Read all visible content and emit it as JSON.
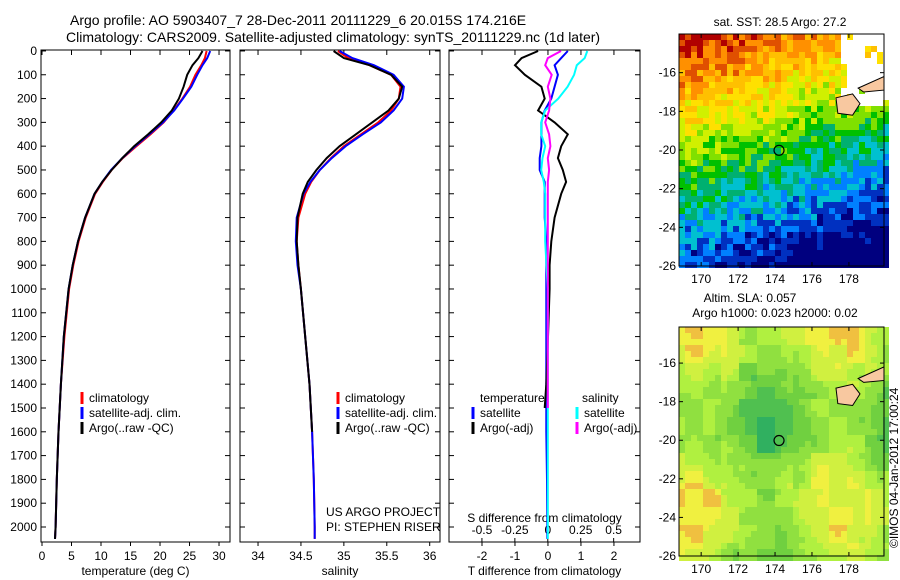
{
  "title_line1": "Argo profile: AO 5903407_7 28-Dec-2011 20111229_6 20.015S 174.216E",
  "title_line2": "Climatology: CARS2009. Satellite-adjusted climatology: synTS_20111229.nc (1d later)",
  "credit": "US ARGO PROJECT",
  "pi": "PI: STEPHEN RISER",
  "footer_stamp": "©IMOS 04-Jan-2012 17:00:24",
  "colors": {
    "climatology": "#ff0000",
    "satellite": "#0000ff",
    "argo": "#000000",
    "sal_satellite": "#00ffff",
    "sal_argo": "#ff00ff"
  },
  "chart_data": [
    {
      "type": "line",
      "id": "temperature",
      "xlabel": "temperature (deg C)",
      "xlim": [
        -0.17,
        31.86
      ],
      "xticks": [
        0,
        5,
        10,
        15,
        20,
        25,
        30
      ],
      "ylim": [
        -4,
        2063
      ],
      "yticks": [
        0,
        100,
        200,
        300,
        400,
        500,
        600,
        700,
        800,
        900,
        1000,
        1100,
        1200,
        1300,
        1400,
        1500,
        1600,
        1700,
        1800,
        1900,
        2000
      ],
      "legend": [
        "climatology",
        "satellite-adj. clim.",
        "Argo(..raw -QC)"
      ],
      "depth": [
        0,
        30,
        60,
        100,
        150,
        200,
        250,
        300,
        350,
        400,
        450,
        500,
        550,
        600,
        700,
        800,
        900,
        1000,
        1200,
        1400,
        1600,
        1800,
        2000,
        2050
      ],
      "series": [
        {
          "name": "climatology",
          "color": "#ff0000",
          "values": [
            27.9,
            27.6,
            27.0,
            26.0,
            25.1,
            23.8,
            22.3,
            20.6,
            18.4,
            16.0,
            13.7,
            11.8,
            10.3,
            9.0,
            7.4,
            6.2,
            5.3,
            4.6,
            3.8,
            3.2,
            2.8,
            2.5,
            2.3,
            2.2
          ]
        },
        {
          "name": "satellite-adj. clim.",
          "color": "#0000ff",
          "values": [
            28.5,
            28.0,
            27.2,
            26.3,
            25.3,
            23.9,
            22.4,
            20.5,
            18.2,
            15.8,
            13.6,
            11.7,
            10.2,
            8.9,
            7.3,
            6.1,
            5.2,
            4.5,
            3.7,
            3.2,
            2.8,
            2.5,
            2.3,
            2.2
          ]
        },
        {
          "name": "Argo(..raw -QC)",
          "color": "#000000",
          "values": [
            27.2,
            26.5,
            25.5,
            24.6,
            24.0,
            23.2,
            22.0,
            20.2,
            18.0,
            15.6,
            13.6,
            11.8,
            10.2,
            8.9,
            7.3,
            6.1,
            5.2,
            4.5,
            3.7,
            3.2,
            2.8,
            2.5,
            2.3,
            2.2
          ]
        }
      ]
    },
    {
      "type": "line",
      "id": "salinity",
      "xlabel": "salinity",
      "xlim": [
        33.79,
        36.12
      ],
      "xticks": [
        34,
        34.5,
        35,
        35.5,
        36
      ],
      "ylim": [
        -4,
        2063
      ],
      "legend": [
        "climatology",
        "satellite-adj. clim.",
        "Argo(..raw -QC)"
      ],
      "depth": [
        0,
        30,
        60,
        100,
        150,
        200,
        250,
        300,
        350,
        400,
        450,
        500,
        550,
        600,
        700,
        800,
        900,
        1000,
        1200,
        1400,
        1600,
        1800,
        2000,
        2050
      ],
      "series": [
        {
          "name": "climatology",
          "color": "#ff0000",
          "values": [
            34.93,
            35.05,
            35.3,
            35.55,
            35.66,
            35.64,
            35.55,
            35.4,
            35.2,
            35.0,
            34.85,
            34.72,
            34.62,
            34.55,
            34.47,
            34.45,
            34.47,
            34.5,
            34.55,
            34.6,
            34.63,
            34.65,
            34.66,
            34.66
          ]
        },
        {
          "name": "satellite-adj. clim.",
          "color": "#0000ff",
          "values": [
            34.95,
            35.1,
            35.35,
            35.58,
            35.7,
            35.68,
            35.58,
            35.43,
            35.22,
            35.02,
            34.86,
            34.72,
            34.61,
            34.53,
            34.45,
            34.44,
            34.46,
            34.5,
            34.55,
            34.6,
            34.63,
            34.65,
            34.66,
            34.66
          ]
        },
        {
          "name": "Argo(..raw -QC)",
          "color": "#000000",
          "values": [
            34.88,
            35.0,
            35.3,
            35.55,
            35.68,
            35.64,
            35.52,
            35.33,
            35.14,
            34.95,
            34.8,
            34.68,
            34.58,
            34.52,
            34.46,
            34.45,
            34.47,
            34.5,
            34.55,
            34.6,
            34.63,
            null,
            null,
            null
          ]
        }
      ]
    },
    {
      "type": "line",
      "id": "differences",
      "xlabel": "T difference from climatology",
      "xlabel2": "S difference from climatology",
      "xlim": [
        -3.0,
        2.79
      ],
      "xlim2": [
        -0.75,
        0.7
      ],
      "xticks": [
        -2,
        -1,
        0,
        1,
        2
      ],
      "xticks2": [
        -0.5,
        -0.25,
        0,
        0.25,
        0.5
      ],
      "ylim": [
        -4,
        2063
      ],
      "legend_left_title": "temperature",
      "legend_right_title": "salinity",
      "legend": [
        "satellite",
        "Argo(-adj)",
        "satellite",
        "Argo(-adj)"
      ],
      "depth": [
        0,
        30,
        60,
        100,
        150,
        200,
        250,
        300,
        350,
        400,
        450,
        500,
        550,
        600,
        700,
        800,
        900,
        1000,
        1200,
        1400,
        1500,
        1600,
        1800,
        2000,
        2050
      ],
      "series": [
        {
          "name": "T satellite",
          "axis": "T",
          "color": "#0000ff",
          "values": [
            0.6,
            0.4,
            0.2,
            0.3,
            0.2,
            0.1,
            -0.1,
            -0.2,
            -0.2,
            -0.2,
            -0.25,
            -0.25,
            -0.1,
            -0.1,
            -0.1,
            -0.05,
            -0.05,
            -0.05,
            -0.05,
            -0.05,
            -0.05,
            -0.05,
            -0.03,
            -0.02,
            -0.02
          ]
        },
        {
          "name": "T Argo(-adj)",
          "axis": "T",
          "color": "#000000",
          "values": [
            -0.3,
            -0.8,
            -1.0,
            -0.7,
            -0.2,
            -0.1,
            -0.3,
            0.2,
            0.6,
            0.4,
            0.3,
            0.45,
            0.55,
            0.4,
            0.2,
            0.1,
            0.05,
            0.05,
            0.0,
            -0.05,
            -0.1,
            null,
            null,
            null,
            null
          ]
        },
        {
          "name": "S satellite",
          "axis": "S",
          "color": "#00ffff",
          "values": [
            0.3,
            0.28,
            0.22,
            0.2,
            0.15,
            0.08,
            -0.02,
            -0.05,
            -0.05,
            -0.02,
            -0.04,
            -0.05,
            -0.03,
            -0.02,
            -0.02,
            -0.02,
            -0.01,
            0,
            0,
            0,
            0,
            0,
            0,
            0.0,
            0.0
          ]
        },
        {
          "name": "S Argo(-adj)",
          "axis": "S",
          "color": "#ff00ff",
          "values": [
            0.1,
            0.0,
            -0.02,
            0.03,
            0.0,
            0.02,
            0.01,
            -0.02,
            0.01,
            0.02,
            0.0,
            0.01,
            0.0,
            0.0,
            0.0,
            0.0,
            0.0,
            0.0,
            0.0,
            0.0,
            0.0,
            null,
            null,
            null,
            null
          ]
        }
      ]
    },
    {
      "type": "heatmap",
      "id": "sst-map",
      "title": "sat. SST: 28.5 Argo: 27.2",
      "xlim": [
        168.8,
        179.9
      ],
      "ylim": [
        -26,
        -14.0
      ],
      "xticks": [
        170,
        172,
        174,
        176,
        178
      ],
      "yticks": [
        -16,
        -18,
        -20,
        -22,
        -24,
        -26
      ],
      "marker": {
        "lon": 174.216,
        "lat": -20.015
      }
    },
    {
      "type": "heatmap",
      "id": "sla-map",
      "title": "Altim. SLA: 0.057",
      "subtitle": "Argo h1000: 0.023 h2000: 0.02",
      "xlim": [
        168.8,
        179.9
      ],
      "ylim": [
        -26,
        -14.13
      ],
      "xticks": [
        170,
        172,
        174,
        176,
        178
      ],
      "yticks": [
        -16,
        -18,
        -20,
        -22,
        -24,
        -26
      ],
      "marker": {
        "lon": 174.216,
        "lat": -20.015
      }
    }
  ]
}
